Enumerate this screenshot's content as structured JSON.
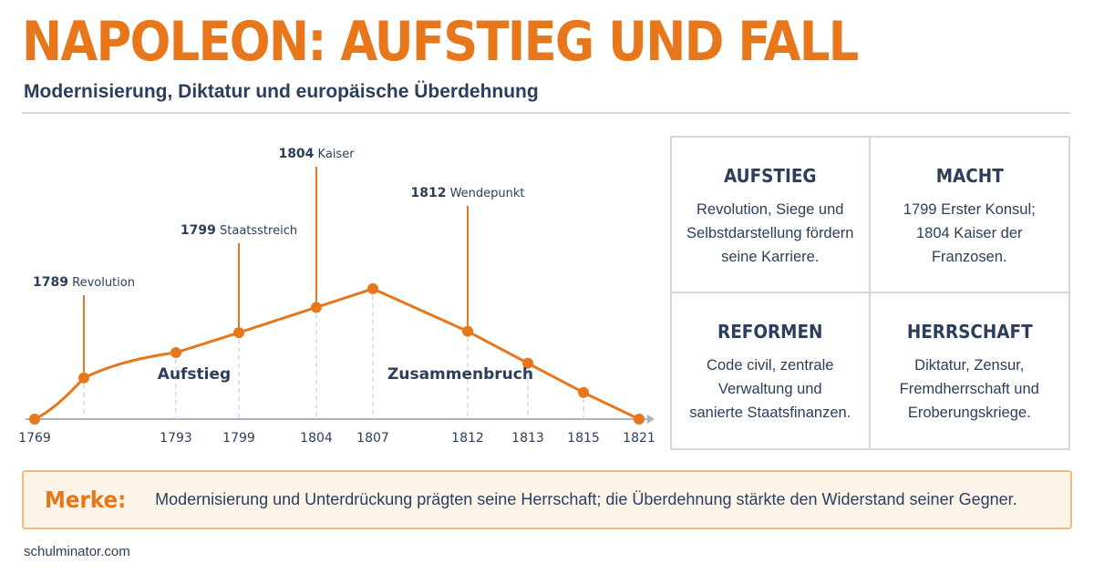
{
  "title": "NAPOLEON: AUFSTIEG UND FALL",
  "subtitle": "Modernisierung, Diktatur und europäische Überdehnung",
  "chart_data": {
    "type": "line",
    "x_tick_labels": [
      "1769",
      "1793",
      "1799",
      "1804",
      "1807",
      "1812",
      "1813",
      "1815",
      "1821"
    ],
    "points": [
      {
        "year": 1769,
        "label": ""
      },
      {
        "year": 1789,
        "label": "1789 Revolution"
      },
      {
        "year": 1793,
        "label": ""
      },
      {
        "year": 1799,
        "label": "1799 Staatsstreich"
      },
      {
        "year": 1804,
        "label": "1804 Kaiser"
      },
      {
        "year": 1807,
        "label": ""
      },
      {
        "year": 1812,
        "label": "1812 Wendepunkt"
      },
      {
        "year": 1813,
        "label": ""
      },
      {
        "year": 1815,
        "label": ""
      },
      {
        "year": 1821,
        "label": ""
      }
    ],
    "values": [
      0,
      3.1,
      5.0,
      6.5,
      8.4,
      9.8,
      6.6,
      4.2,
      2.0,
      0
    ],
    "phase_labels": [
      "Aufstieg",
      "Zusammenbruch"
    ],
    "color": "#e8761a"
  },
  "cards": [
    {
      "title": "AUFSTIEG",
      "text": [
        "Revolution, Siege und",
        "Selbstdarstellung fördern",
        "seine Karriere."
      ]
    },
    {
      "title": "MACHT",
      "text": [
        "1799 Erster Konsul;",
        "1804 Kaiser der",
        "Franzosen."
      ]
    },
    {
      "title": "REFORMEN",
      "text": [
        "Code civil, zentrale",
        "Verwaltung und",
        "sanierte Staatsfinanzen."
      ]
    },
    {
      "title": "HERRSCHAFT",
      "text": [
        "Diktatur, Zensur,",
        "Fremdherrschaft und",
        "Eroberungskriege."
      ]
    }
  ],
  "note": {
    "label": "Merke:",
    "text": "Modernisierung und Unterdrückung prägten seine Herrschaft; die Überdehnung stärkte den Widerstand seiner Gegner."
  },
  "footer": "schulminator.com"
}
